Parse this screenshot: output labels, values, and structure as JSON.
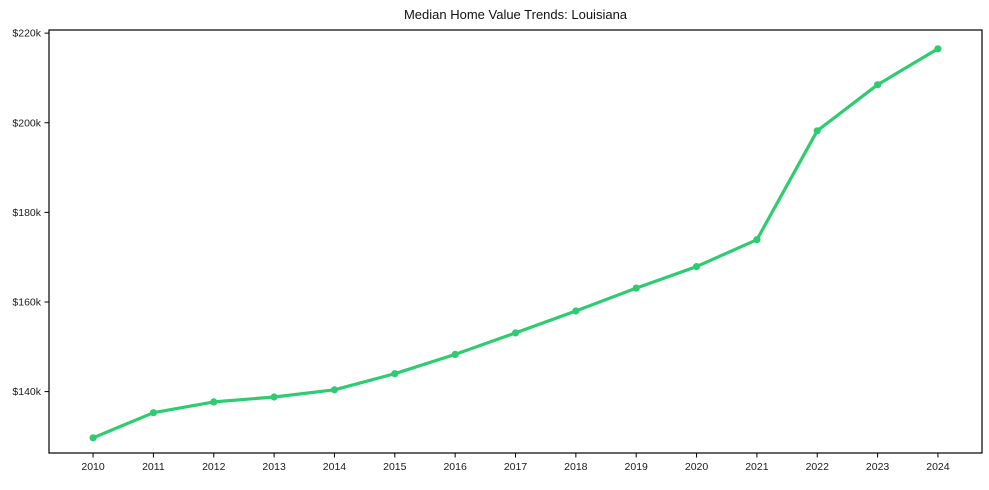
{
  "chart_data": {
    "type": "line",
    "title": "Median Home Value Trends: Louisiana",
    "xlabel": "",
    "ylabel": "",
    "x": [
      2010,
      2011,
      2012,
      2013,
      2014,
      2015,
      2016,
      2017,
      2018,
      2019,
      2020,
      2021,
      2022,
      2023,
      2024
    ],
    "series": [
      {
        "name": "median-home-value",
        "values_usd_thousands": [
          129.7,
          135.3,
          137.7,
          138.8,
          140.4,
          144.0,
          148.3,
          153.1,
          158.0,
          163.1,
          167.9,
          173.9,
          198.2,
          208.5,
          216.5
        ]
      }
    ],
    "xticks": {
      "values": [
        2010,
        2011,
        2012,
        2013,
        2014,
        2015,
        2016,
        2017,
        2018,
        2019,
        2020,
        2021,
        2022,
        2023,
        2024
      ],
      "labels": [
        "2010",
        "2011",
        "2012",
        "2013",
        "2014",
        "2015",
        "2016",
        "2017",
        "2018",
        "2019",
        "2020",
        "2021",
        "2022",
        "2023",
        "2024"
      ]
    },
    "yticks": {
      "values": [
        140,
        160,
        180,
        200,
        220
      ],
      "labels": [
        "$140k",
        "$160k",
        "$180k",
        "$200k",
        "$220k"
      ]
    },
    "xlim": [
      2009.27,
      2024.73
    ],
    "ylim": [
      126.3,
      220.7
    ],
    "grid": false,
    "legend": false,
    "line_color": "#2ecc71",
    "marker": "circle",
    "background_color": "#ffffff",
    "spine_color": "#000000",
    "tick_label_color": "#1a1a1a"
  }
}
